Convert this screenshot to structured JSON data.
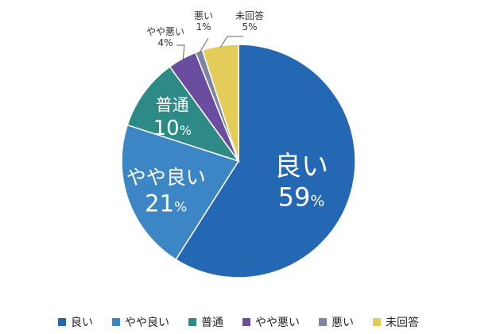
{
  "chart_data": {
    "type": "pie",
    "categories": [
      "良い",
      "やや良い",
      "普通",
      "やや悪い",
      "悪い",
      "未回答"
    ],
    "values": [
      59,
      21,
      10,
      4,
      1,
      5
    ],
    "value_labels": [
      "59%",
      "21%",
      "10%",
      "4%",
      "1%",
      "5%"
    ],
    "colors": [
      "#2468b4",
      "#3d86c6",
      "#2d8a87",
      "#6a4d9e",
      "#7b86a5",
      "#e4cc5a"
    ],
    "legend_position": "bottom",
    "start": "top",
    "direction": "clockwise"
  }
}
